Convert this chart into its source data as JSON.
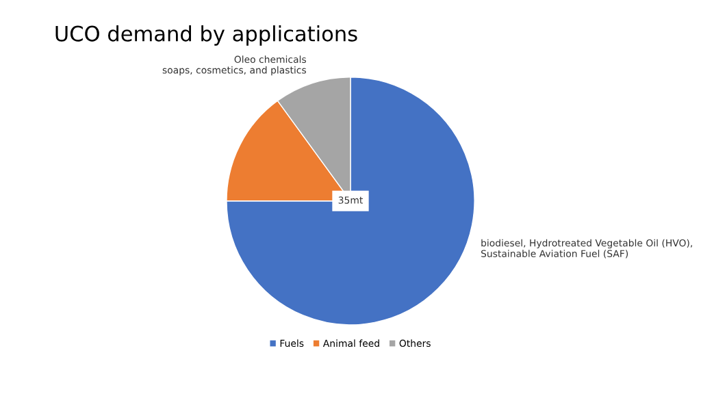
{
  "chart_data": {
    "type": "pie",
    "title": "UCO demand by applications",
    "categories": [
      "Fuels",
      "Animal feed",
      "Others"
    ],
    "values": [
      75,
      15,
      10
    ],
    "colors": [
      "#4472c4",
      "#ed7d31",
      "#a5a5a5"
    ],
    "annotations": [
      {
        "text": "Oleo chemicals\n soaps, cosmetics, and plastics",
        "x": "Others"
      },
      {
        "text": "biodiesel, Hydrotreated Vegetable Oil (HVO),\nSustainable Aviation Fuel (SAF)",
        "x": "Fuels"
      },
      "35mt"
    ],
    "legend": "bottom"
  }
}
